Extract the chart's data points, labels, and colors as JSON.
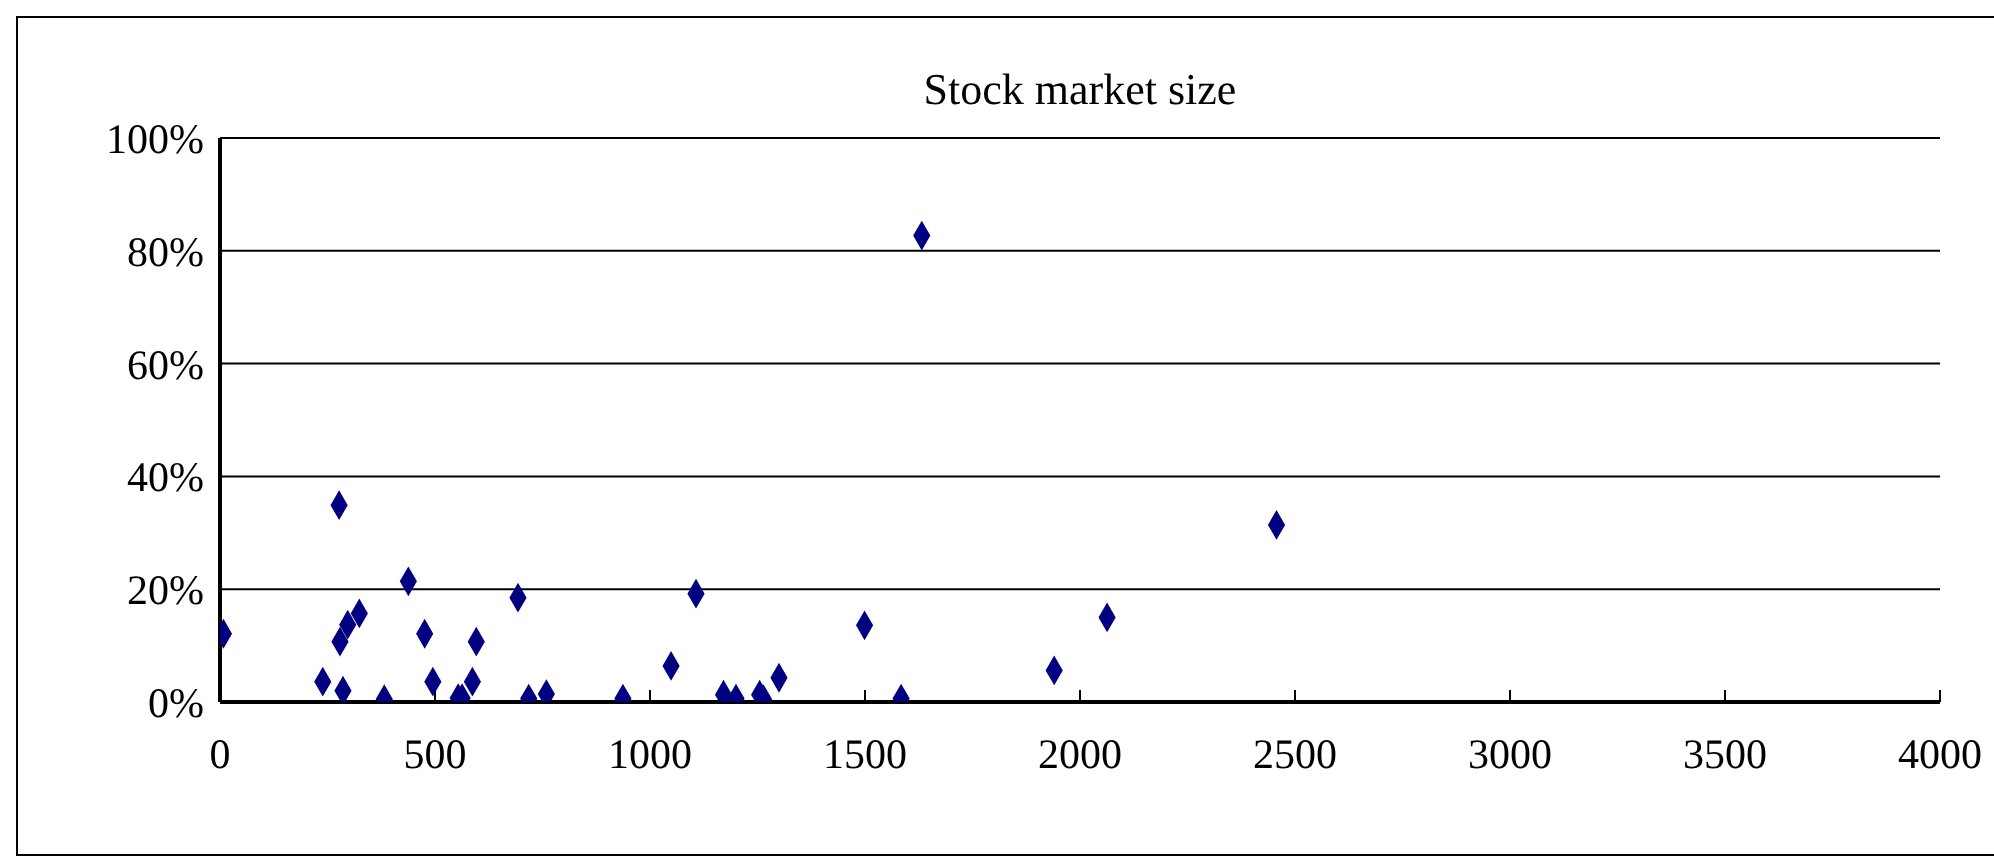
{
  "chart_data": {
    "type": "scatter",
    "title": "Stock market size",
    "x": [
      8,
      277,
      438,
      324,
      297,
      279,
      476,
      596,
      693,
      239,
      286,
      382,
      495,
      587,
      554,
      563,
      718,
      759,
      937,
      1107,
      1049,
      1171,
      1200,
      1255,
      1264,
      1300,
      1499,
      1584,
      1632,
      2457,
      2063,
      1940
    ],
    "series": [
      {
        "color": "#000080",
        "values": [
          12.1,
          34.9,
          21.4,
          15.7,
          13.7,
          10.7,
          12.1,
          10.7,
          18.5,
          3.6,
          2,
          0.5,
          3.6,
          3.6,
          0.7,
          0.7,
          0.6,
          1.4,
          0.6,
          19.2,
          6.4,
          1.3,
          0.6,
          1.3,
          0.5,
          4.3,
          13.6,
          0.6,
          82.7,
          31.4,
          15,
          5.6
        ]
      }
    ],
    "xlim": [
      0,
      4000
    ],
    "xticks": [
      0,
      500,
      1000,
      1500,
      2000,
      2500,
      3000,
      3500,
      4000
    ],
    "ylim": [
      0,
      100
    ],
    "yticks": [
      {
        "value": 0,
        "label": "0%"
      },
      {
        "value": 20,
        "label": "20%"
      },
      {
        "value": 40,
        "label": "40%"
      },
      {
        "value": 60,
        "label": "60%"
      },
      {
        "value": 80,
        "label": "80%"
      },
      {
        "value": 100,
        "label": "100%"
      }
    ],
    "grid": "y",
    "marker": "diamond"
  }
}
